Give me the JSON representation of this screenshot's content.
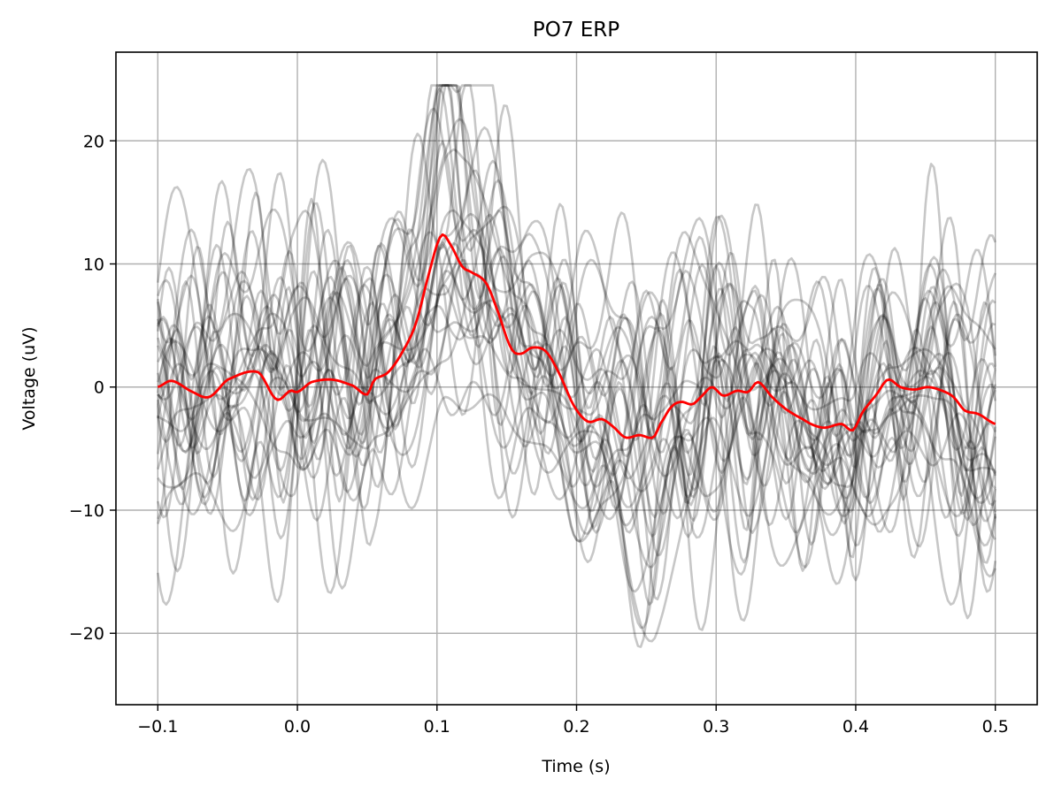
{
  "chart_data": {
    "type": "line",
    "title": "PO7 ERP",
    "xlabel": "Time (s)",
    "ylabel": "Voltage (uV)",
    "xlim": [
      -0.13,
      0.53
    ],
    "ylim": [
      -25.8,
      27.2
    ],
    "xticks": [
      -0.1,
      0.0,
      0.1,
      0.2,
      0.3,
      0.4,
      0.5
    ],
    "xtick_labels": [
      "−0.1",
      "0.0",
      "0.1",
      "0.2",
      "0.3",
      "0.4",
      "0.5"
    ],
    "yticks": [
      -20,
      -10,
      0,
      10,
      20
    ],
    "ytick_labels": [
      "−20",
      "−10",
      "0",
      "10",
      "20"
    ],
    "grid": true,
    "legend": "none",
    "colors": {
      "trials": "#000000",
      "trials_opacity": 0.22,
      "average": "#ff0000",
      "grid": "#b0b0b0"
    },
    "time_step": 0.002,
    "trial_count": 30,
    "trial_seed": 7,
    "average_keypoints": {
      "x": [
        -0.1,
        -0.09,
        -0.075,
        -0.063,
        -0.05,
        -0.028,
        -0.015,
        -0.005,
        0.0,
        0.01,
        0.025,
        0.04,
        0.05,
        0.055,
        0.065,
        0.075,
        0.085,
        0.095,
        0.103,
        0.11,
        0.118,
        0.125,
        0.135,
        0.143,
        0.153,
        0.16,
        0.168,
        0.178,
        0.188,
        0.198,
        0.208,
        0.218,
        0.226,
        0.235,
        0.245,
        0.255,
        0.26,
        0.268,
        0.275,
        0.283,
        0.29,
        0.297,
        0.305,
        0.315,
        0.323,
        0.33,
        0.34,
        0.35,
        0.362,
        0.37,
        0.378,
        0.39,
        0.398,
        0.405,
        0.415,
        0.423,
        0.432,
        0.442,
        0.452,
        0.462,
        0.47,
        0.478,
        0.488,
        0.5
      ],
      "y": [
        0.0,
        0.5,
        -0.4,
        -0.8,
        0.6,
        1.2,
        -1.0,
        -0.3,
        -0.4,
        0.4,
        0.6,
        0.1,
        -0.6,
        0.6,
        1.2,
        2.8,
        5.2,
        9.5,
        12.3,
        11.5,
        9.8,
        9.3,
        8.5,
        6.3,
        3.2,
        2.7,
        3.2,
        2.9,
        1.0,
        -1.5,
        -2.8,
        -2.6,
        -3.2,
        -4.1,
        -3.9,
        -4.1,
        -3.0,
        -1.6,
        -1.2,
        -1.4,
        -0.7,
        0.0,
        -0.7,
        -0.3,
        -0.4,
        0.4,
        -0.8,
        -1.8,
        -2.6,
        -3.1,
        -3.3,
        -3.0,
        -3.5,
        -2.0,
        -0.6,
        0.6,
        0.0,
        -0.2,
        0.0,
        -0.3,
        -0.8,
        -1.9,
        -2.2,
        -3.0
      ]
    }
  }
}
